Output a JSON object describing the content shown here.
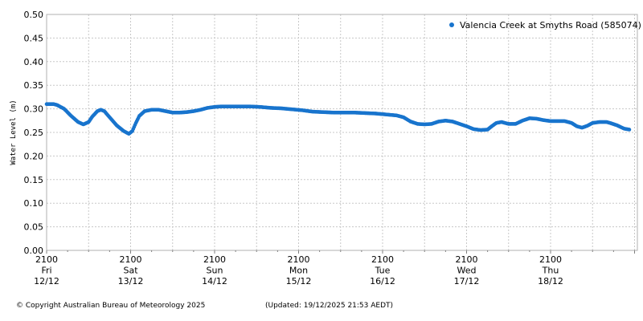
{
  "chart_data": {
    "type": "scatter",
    "ylabel": "Water Level (m)",
    "xlabel": "",
    "ylim": [
      0,
      0.5
    ],
    "yticks": [
      "0.00",
      "0.05",
      "0.10",
      "0.15",
      "0.20",
      "0.25",
      "0.30",
      "0.35",
      "0.40",
      "0.45",
      "0.50"
    ],
    "grid": true,
    "legend_position": "top-right",
    "xtick_labels": [
      {
        "time": "2100",
        "day": "Fri",
        "date": "12/12"
      },
      {
        "time": "2100",
        "day": "Sat",
        "date": "13/12"
      },
      {
        "time": "2100",
        "day": "Sun",
        "date": "14/12"
      },
      {
        "time": "2100",
        "day": "Mon",
        "date": "15/12"
      },
      {
        "time": "2100",
        "day": "Tue",
        "date": "16/12"
      },
      {
        "time": "2100",
        "day": "Wed",
        "date": "17/12"
      },
      {
        "time": "2100",
        "day": "Thu",
        "date": "18/12"
      }
    ],
    "x_units": "hours after 2100 Fri 12/12",
    "xlim": [
      0,
      161
    ],
    "series": [
      {
        "name": "Valencia Creek at Smyths Road (585074)",
        "color": "#1874CD",
        "points": [
          [
            0,
            0.31
          ],
          [
            2,
            0.31
          ],
          [
            3,
            0.308
          ],
          [
            5,
            0.3
          ],
          [
            7,
            0.285
          ],
          [
            9,
            0.272
          ],
          [
            10.5,
            0.267
          ],
          [
            12,
            0.272
          ],
          [
            13,
            0.283
          ],
          [
            14.5,
            0.295
          ],
          [
            15.5,
            0.298
          ],
          [
            16.5,
            0.295
          ],
          [
            18,
            0.282
          ],
          [
            20,
            0.265
          ],
          [
            22,
            0.253
          ],
          [
            23.5,
            0.247
          ],
          [
            24.5,
            0.253
          ],
          [
            25.5,
            0.27
          ],
          [
            26.5,
            0.285
          ],
          [
            28,
            0.295
          ],
          [
            30,
            0.298
          ],
          [
            32,
            0.298
          ],
          [
            34,
            0.295
          ],
          [
            36,
            0.292
          ],
          [
            38,
            0.292
          ],
          [
            40,
            0.293
          ],
          [
            42,
            0.295
          ],
          [
            44,
            0.298
          ],
          [
            46,
            0.302
          ],
          [
            48,
            0.304
          ],
          [
            50,
            0.305
          ],
          [
            52,
            0.305
          ],
          [
            55,
            0.305
          ],
          [
            58,
            0.305
          ],
          [
            61,
            0.304
          ],
          [
            64,
            0.302
          ],
          [
            67,
            0.301
          ],
          [
            70,
            0.299
          ],
          [
            73,
            0.297
          ],
          [
            76,
            0.294
          ],
          [
            79,
            0.293
          ],
          [
            82,
            0.292
          ],
          [
            85,
            0.292
          ],
          [
            88,
            0.292
          ],
          [
            91,
            0.291
          ],
          [
            94,
            0.29
          ],
          [
            97,
            0.288
          ],
          [
            100,
            0.286
          ],
          [
            102,
            0.282
          ],
          [
            104,
            0.273
          ],
          [
            106,
            0.268
          ],
          [
            108,
            0.267
          ],
          [
            110,
            0.268
          ],
          [
            112,
            0.273
          ],
          [
            114,
            0.275
          ],
          [
            116,
            0.273
          ],
          [
            118,
            0.268
          ],
          [
            120,
            0.263
          ],
          [
            122,
            0.257
          ],
          [
            124,
            0.255
          ],
          [
            126,
            0.256
          ],
          [
            127,
            0.262
          ],
          [
            128.5,
            0.27
          ],
          [
            130,
            0.272
          ],
          [
            132,
            0.268
          ],
          [
            134,
            0.268
          ],
          [
            136,
            0.275
          ],
          [
            138,
            0.28
          ],
          [
            140,
            0.279
          ],
          [
            142,
            0.276
          ],
          [
            144,
            0.274
          ],
          [
            146,
            0.274
          ],
          [
            148,
            0.274
          ],
          [
            150,
            0.27
          ],
          [
            151.5,
            0.263
          ],
          [
            153,
            0.26
          ],
          [
            154.5,
            0.264
          ],
          [
            156,
            0.27
          ],
          [
            158,
            0.272
          ],
          [
            160,
            0.272
          ],
          [
            161,
            0.27
          ],
          [
            163,
            0.265
          ],
          [
            165,
            0.258
          ],
          [
            166.5,
            0.256
          ]
        ]
      }
    ]
  },
  "footer": {
    "copyright": "© Copyright Australian Bureau of Meteorology 2025",
    "updated": "(Updated: 19/12/2025 21:53 AEDT)"
  }
}
